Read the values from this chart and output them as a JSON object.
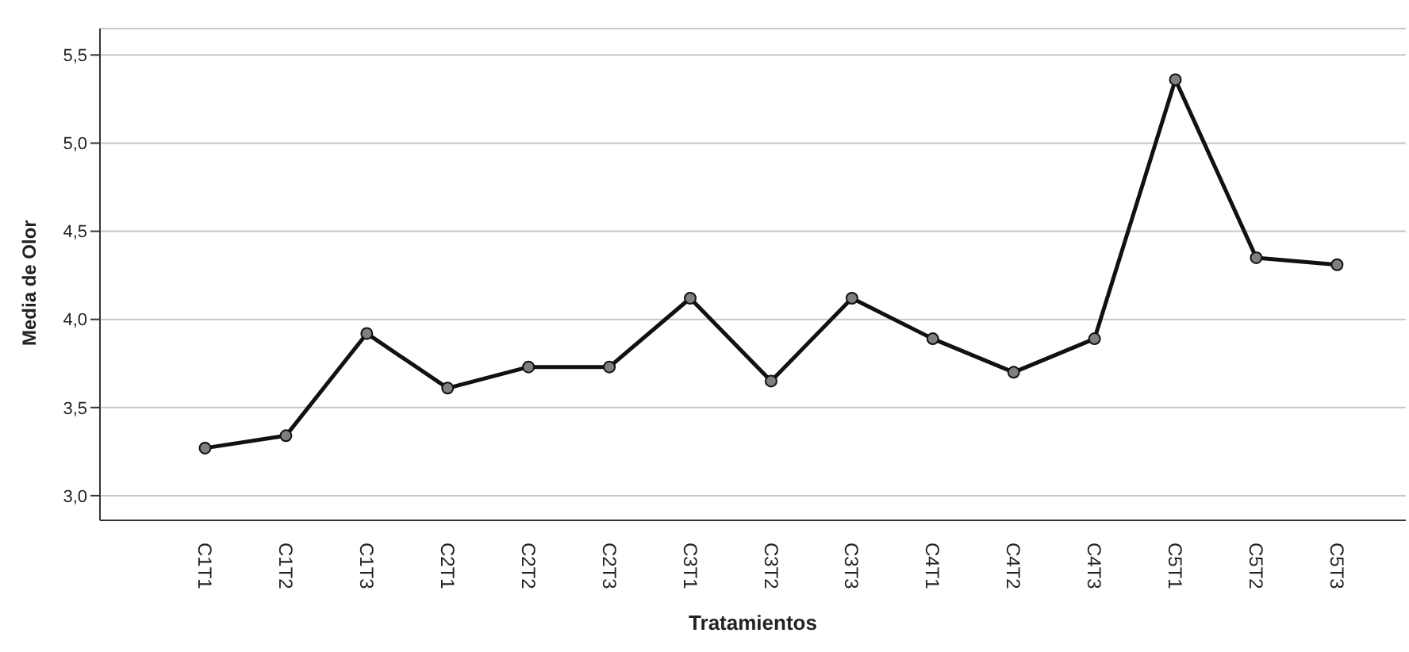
{
  "chart_data": {
    "type": "line",
    "xlabel": "Tratamientos",
    "ylabel": "Media de Olor",
    "categories": [
      "C1T1",
      "C1T2",
      "C1T3",
      "C2T1",
      "C2T2",
      "C2T3",
      "C3T1",
      "C3T2",
      "C3T3",
      "C4T1",
      "C4T2",
      "C4T3",
      "C5T1",
      "C5T2",
      "C5T3"
    ],
    "series": [
      {
        "color": "#111111",
        "values": [
          3.27,
          3.34,
          3.92,
          3.61,
          3.73,
          3.73,
          4.12,
          3.65,
          4.12,
          3.89,
          3.7,
          3.89,
          5.36,
          4.35,
          4.31
        ]
      }
    ],
    "ylim": [
      2.86,
      5.65
    ],
    "yticks": [
      {
        "value": 3,
        "label": "3,0"
      },
      {
        "value": 3.5,
        "label": "3,5"
      },
      {
        "value": 4,
        "label": "4,0"
      },
      {
        "value": 4.5,
        "label": "4,5"
      },
      {
        "value": 5,
        "label": "5,0"
      },
      {
        "value": 5.5,
        "label": "5,5"
      }
    ],
    "grid": "y",
    "marker": "circle",
    "line_style": "solid"
  }
}
